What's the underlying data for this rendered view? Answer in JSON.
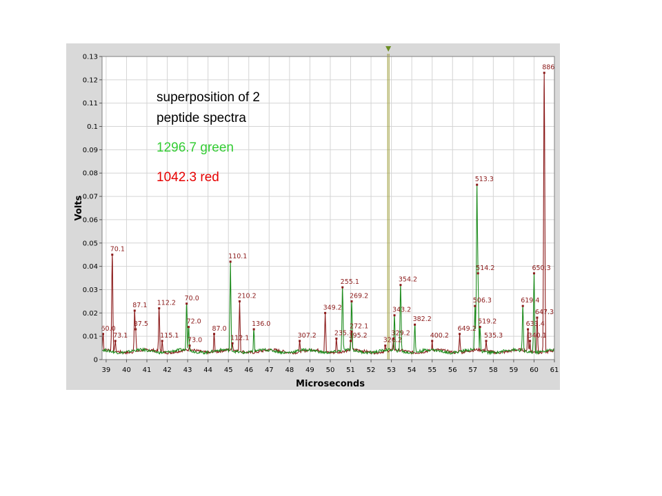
{
  "chart_data": {
    "type": "line",
    "xlabel": "Microseconds",
    "ylabel": "Volts",
    "xlim": [
      38.8,
      61
    ],
    "ylim": [
      0,
      0.13
    ],
    "x_ticks": [
      "39",
      "40",
      "41",
      "42",
      "43",
      "44",
      "45",
      "46",
      "47",
      "48",
      "49",
      "50",
      "51",
      "52",
      "53",
      "54",
      "55",
      "56",
      "57",
      "58",
      "59",
      "60",
      "61"
    ],
    "y_ticks": [
      "0",
      "0.01",
      "0.02",
      "0.03",
      "0.04",
      "0.05",
      "0.06",
      "0.07",
      "0.08",
      "0.09",
      "0.1",
      "0.11",
      "0.12",
      "0.13"
    ],
    "annotations": [
      {
        "text": "superposition of 2",
        "color": "#000000"
      },
      {
        "text": "peptide spectra",
        "color": "#000000"
      },
      {
        "text": "1296.7 green",
        "color": "#33cc33"
      },
      {
        "text": "1042.3 red",
        "color": "#e60000"
      }
    ],
    "cursor_x": 52.85,
    "colors": {
      "green": "#1e8c1e",
      "red": "#8b1a1a",
      "cursor": "#999933",
      "panel": "#d9d9d9"
    },
    "series": [
      {
        "color": "#8b1a1a",
        "peaks": [
          {
            "x": 38.85,
            "y": 0.011,
            "label": "60.0"
          },
          {
            "x": 39.3,
            "y": 0.045,
            "label": "70.1"
          },
          {
            "x": 39.45,
            "y": 0.008,
            "label": "73.1"
          },
          {
            "x": 40.4,
            "y": 0.021,
            "label": "87.1"
          },
          {
            "x": 40.45,
            "y": 0.013,
            "label": "87.5"
          },
          {
            "x": 41.6,
            "y": 0.022,
            "label": "112.2"
          },
          {
            "x": 41.75,
            "y": 0.008,
            "label": "115.1"
          },
          {
            "x": 43.1,
            "y": 0.006,
            "label": "73.0"
          },
          {
            "x": 44.3,
            "y": 0.011,
            "label": "87.0"
          },
          {
            "x": 45.2,
            "y": 0.007,
            "label": "112.1"
          },
          {
            "x": 45.55,
            "y": 0.025,
            "label": "210.2"
          },
          {
            "x": 48.5,
            "y": 0.008,
            "label": "307.2"
          },
          {
            "x": 49.75,
            "y": 0.02,
            "label": "349.2"
          },
          {
            "x": 50.3,
            "y": 0.009,
            "label": "235.1"
          },
          {
            "x": 51.05,
            "y": 0.012,
            "label": "272.1"
          },
          {
            "x": 51.0,
            "y": 0.008,
            "label": "395.2"
          },
          {
            "x": 52.7,
            "y": 0.006,
            "label": "326.2"
          },
          {
            "x": 53.1,
            "y": 0.009,
            "label": "329.2"
          },
          {
            "x": 55.0,
            "y": 0.008,
            "label": "400.2"
          },
          {
            "x": 56.35,
            "y": 0.011,
            "label": "649.2"
          },
          {
            "x": 57.65,
            "y": 0.008,
            "label": "535.3"
          },
          {
            "x": 59.7,
            "y": 0.013,
            "label": "633.4"
          },
          {
            "x": 59.8,
            "y": 0.008,
            "label": "340.1"
          },
          {
            "x": 60.15,
            "y": 0.018,
            "label": "647.3"
          },
          {
            "x": 60.5,
            "y": 0.123,
            "label": "886"
          }
        ]
      },
      {
        "color": "#1e8c1e",
        "peaks": [
          {
            "x": 42.95,
            "y": 0.024,
            "label": "70.0"
          },
          {
            "x": 43.05,
            "y": 0.014,
            "label": "72.0"
          },
          {
            "x": 45.1,
            "y": 0.042,
            "label": "110.1"
          },
          {
            "x": 46.25,
            "y": 0.013,
            "label": "136.0"
          },
          {
            "x": 50.6,
            "y": 0.031,
            "label": "255.1"
          },
          {
            "x": 51.05,
            "y": 0.025,
            "label": "269.2"
          },
          {
            "x": 53.45,
            "y": 0.032,
            "label": "354.2"
          },
          {
            "x": 53.15,
            "y": 0.019,
            "label": "343.2"
          },
          {
            "x": 54.15,
            "y": 0.015,
            "label": "382.2"
          },
          {
            "x": 57.2,
            "y": 0.075,
            "label": "513.3"
          },
          {
            "x": 57.25,
            "y": 0.037,
            "label": "514.2"
          },
          {
            "x": 57.1,
            "y": 0.023,
            "label": "506.3"
          },
          {
            "x": 57.35,
            "y": 0.014,
            "label": "519.2"
          },
          {
            "x": 59.45,
            "y": 0.023,
            "label": "619.4"
          },
          {
            "x": 60.0,
            "y": 0.037,
            "label": "650.3"
          }
        ]
      }
    ]
  }
}
